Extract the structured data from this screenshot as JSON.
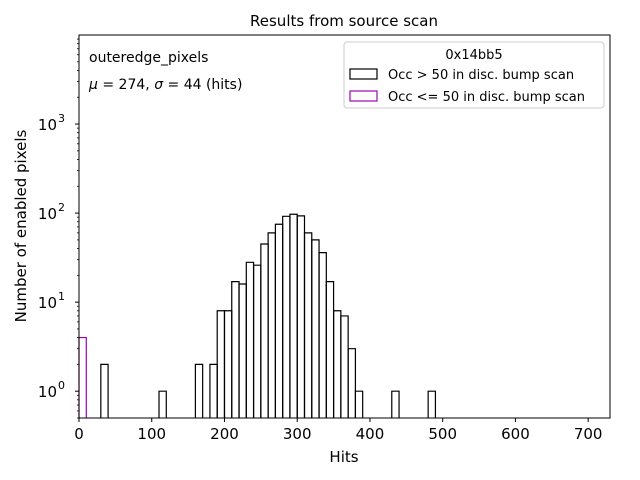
{
  "chart_data": {
    "type": "histogram",
    "title": "Results from source scan",
    "xlabel": "Hits",
    "ylabel": "Number of enabled pixels",
    "xlim": [
      0,
      730
    ],
    "ylim": [
      0.5,
      10000
    ],
    "yscale": "log",
    "xticks": [
      0,
      100,
      200,
      300,
      400,
      500,
      600,
      700
    ],
    "xtick_labels": [
      "0",
      "100",
      "200",
      "300",
      "400",
      "500",
      "600",
      "700"
    ],
    "yticks": [
      1,
      10,
      100,
      1000
    ],
    "ytick_labels": [
      "10^0",
      "10^1",
      "10^2",
      "10^3"
    ],
    "bin_width": 10,
    "annotation": {
      "name": "outeredge_pixels",
      "mu_prefix": "μ",
      "mu_value": " = 274, ",
      "sigma_prefix": "σ",
      "sigma_value": " = 44 (hits)"
    },
    "legend": {
      "title": "0x14bb5",
      "position": "upper-right",
      "entries": [
        {
          "label": "Occ > 50 in disc. bump scan",
          "color": "#000000"
        },
        {
          "label": "Occ <= 50 in disc. bump scan",
          "color": "#a000b0"
        }
      ]
    },
    "series": [
      {
        "name": "Occ > 50 in disc. bump scan",
        "color": "#000000",
        "bins": [
          [
            30,
            2
          ],
          [
            110,
            1
          ],
          [
            160,
            2
          ],
          [
            180,
            2
          ],
          [
            190,
            8
          ],
          [
            200,
            8
          ],
          [
            210,
            17
          ],
          [
            220,
            16
          ],
          [
            230,
            28
          ],
          [
            240,
            26
          ],
          [
            250,
            45
          ],
          [
            260,
            60
          ],
          [
            270,
            75
          ],
          [
            280,
            92
          ],
          [
            290,
            97
          ],
          [
            300,
            93
          ],
          [
            310,
            60
          ],
          [
            320,
            50
          ],
          [
            330,
            36
          ],
          [
            340,
            17
          ],
          [
            350,
            8
          ],
          [
            360,
            7
          ],
          [
            370,
            3
          ],
          [
            380,
            1
          ],
          [
            430,
            1
          ],
          [
            480,
            1
          ]
        ]
      },
      {
        "name": "Occ <= 50 in disc. bump scan",
        "color": "#a000b0",
        "bins": [
          [
            0,
            4
          ]
        ]
      }
    ]
  }
}
